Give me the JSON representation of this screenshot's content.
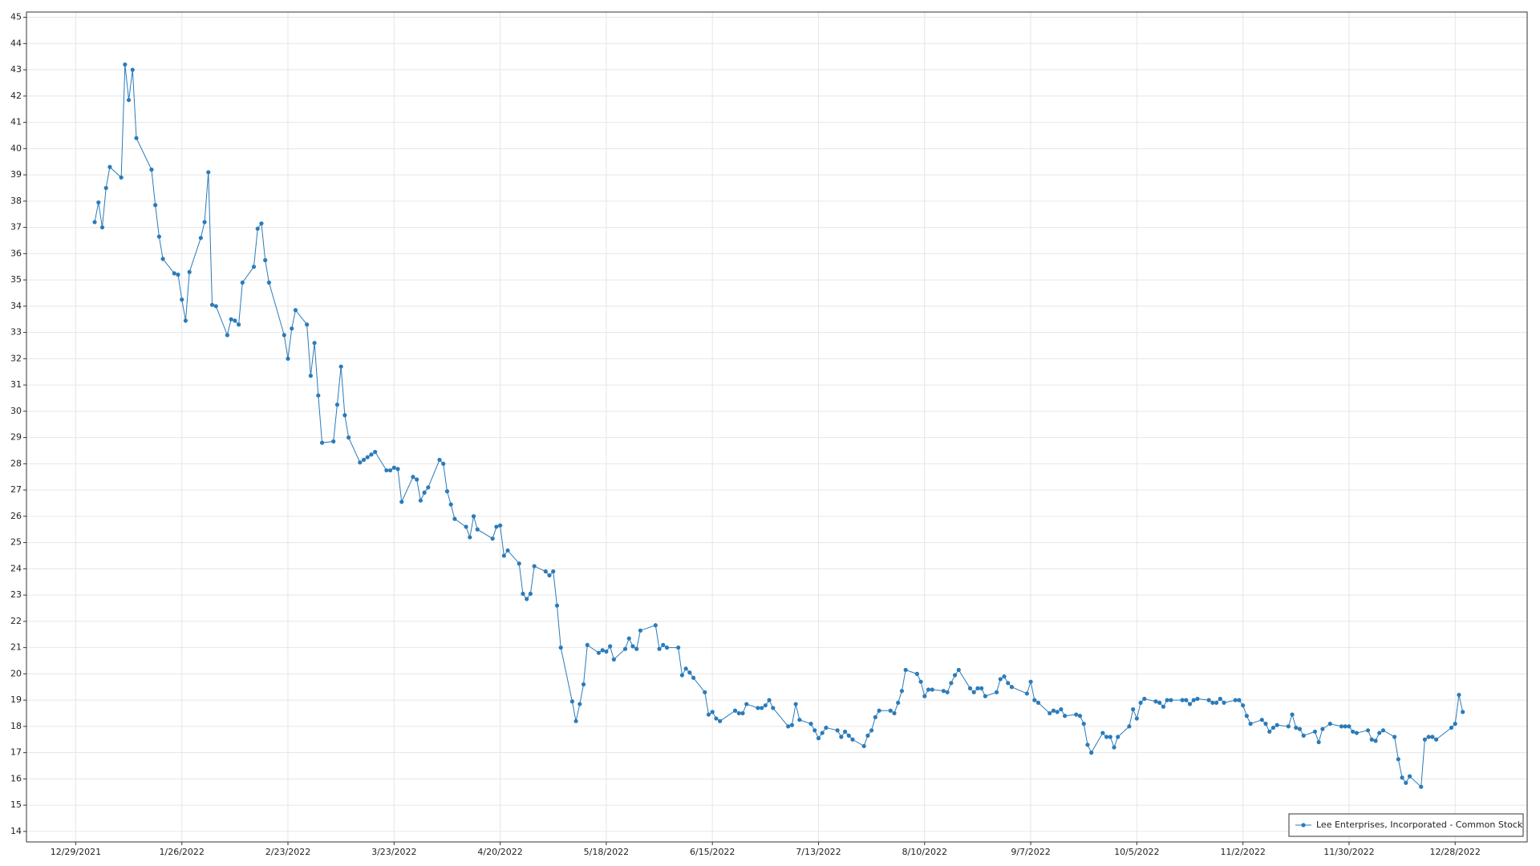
{
  "chart_data": {
    "type": "line",
    "x": [
      "1/3/2022",
      "1/4/2022",
      "1/5/2022",
      "1/6/2022",
      "1/7/2022",
      "1/10/2022",
      "1/11/2022",
      "1/12/2022",
      "1/13/2022",
      "1/14/2022",
      "1/18/2022",
      "1/19/2022",
      "1/20/2022",
      "1/21/2022",
      "1/24/2022",
      "1/25/2022",
      "1/26/2022",
      "1/27/2022",
      "1/28/2022",
      "1/31/2022",
      "2/1/2022",
      "2/2/2022",
      "2/3/2022",
      "2/4/2022",
      "2/7/2022",
      "2/8/2022",
      "2/9/2022",
      "2/10/2022",
      "2/11/2022",
      "2/14/2022",
      "2/15/2022",
      "2/16/2022",
      "2/17/2022",
      "2/18/2022",
      "2/22/2022",
      "2/23/2022",
      "2/24/2022",
      "2/25/2022",
      "2/28/2022",
      "3/1/2022",
      "3/2/2022",
      "3/3/2022",
      "3/4/2022",
      "3/7/2022",
      "3/8/2022",
      "3/9/2022",
      "3/10/2022",
      "3/11/2022",
      "3/14/2022",
      "3/15/2022",
      "3/16/2022",
      "3/17/2022",
      "3/18/2022",
      "3/21/2022",
      "3/22/2022",
      "3/23/2022",
      "3/24/2022",
      "3/25/2022",
      "3/28/2022",
      "3/29/2022",
      "3/30/2022",
      "3/31/2022",
      "4/1/2022",
      "4/4/2022",
      "4/5/2022",
      "4/6/2022",
      "4/7/2022",
      "4/8/2022",
      "4/11/2022",
      "4/12/2022",
      "4/13/2022",
      "4/14/2022",
      "4/18/2022",
      "4/19/2022",
      "4/20/2022",
      "4/21/2022",
      "4/22/2022",
      "4/25/2022",
      "4/26/2022",
      "4/27/2022",
      "4/28/2022",
      "4/29/2022",
      "5/2/2022",
      "5/3/2022",
      "5/4/2022",
      "5/5/2022",
      "5/6/2022",
      "5/9/2022",
      "5/10/2022",
      "5/11/2022",
      "5/12/2022",
      "5/13/2022",
      "5/16/2022",
      "5/17/2022",
      "5/18/2022",
      "5/19/2022",
      "5/20/2022",
      "5/23/2022",
      "5/24/2022",
      "5/25/2022",
      "5/26/2022",
      "5/27/2022",
      "5/31/2022",
      "6/1/2022",
      "6/2/2022",
      "6/3/2022",
      "6/6/2022",
      "6/7/2022",
      "6/8/2022",
      "6/9/2022",
      "6/10/2022",
      "6/13/2022",
      "6/14/2022",
      "6/15/2022",
      "6/16/2022",
      "6/17/2022",
      "6/21/2022",
      "6/22/2022",
      "6/23/2022",
      "6/24/2022",
      "6/27/2022",
      "6/28/2022",
      "6/29/2022",
      "6/30/2022",
      "7/1/2022",
      "7/5/2022",
      "7/6/2022",
      "7/7/2022",
      "7/8/2022",
      "7/11/2022",
      "7/12/2022",
      "7/13/2022",
      "7/14/2022",
      "7/15/2022",
      "7/18/2022",
      "7/19/2022",
      "7/20/2022",
      "7/21/2022",
      "7/22/2022",
      "7/25/2022",
      "7/26/2022",
      "7/27/2022",
      "7/28/2022",
      "7/29/2022",
      "8/1/2022",
      "8/2/2022",
      "8/3/2022",
      "8/4/2022",
      "8/5/2022",
      "8/8/2022",
      "8/9/2022",
      "8/10/2022",
      "8/11/2022",
      "8/12/2022",
      "8/15/2022",
      "8/16/2022",
      "8/17/2022",
      "8/18/2022",
      "8/19/2022",
      "8/22/2022",
      "8/23/2022",
      "8/24/2022",
      "8/25/2022",
      "8/26/2022",
      "8/29/2022",
      "8/30/2022",
      "8/31/2022",
      "9/1/2022",
      "9/2/2022",
      "9/6/2022",
      "9/7/2022",
      "9/8/2022",
      "9/9/2022",
      "9/12/2022",
      "9/13/2022",
      "9/14/2022",
      "9/15/2022",
      "9/16/2022",
      "9/19/2022",
      "9/20/2022",
      "9/21/2022",
      "9/22/2022",
      "9/23/2022",
      "9/26/2022",
      "9/27/2022",
      "9/28/2022",
      "9/29/2022",
      "9/30/2022",
      "10/3/2022",
      "10/4/2022",
      "10/5/2022",
      "10/6/2022",
      "10/7/2022",
      "10/10/2022",
      "10/11/2022",
      "10/12/2022",
      "10/13/2022",
      "10/14/2022",
      "10/17/2022",
      "10/18/2022",
      "10/19/2022",
      "10/20/2022",
      "10/21/2022",
      "10/24/2022",
      "10/25/2022",
      "10/26/2022",
      "10/27/2022",
      "10/28/2022",
      "10/31/2022",
      "11/1/2022",
      "11/2/2022",
      "11/3/2022",
      "11/4/2022",
      "11/7/2022",
      "11/8/2022",
      "11/9/2022",
      "11/10/2022",
      "11/11/2022",
      "11/14/2022",
      "11/15/2022",
      "11/16/2022",
      "11/17/2022",
      "11/18/2022",
      "11/21/2022",
      "11/22/2022",
      "11/23/2022",
      "11/25/2022",
      "11/28/2022",
      "11/29/2022",
      "11/30/2022",
      "12/1/2022",
      "12/2/2022",
      "12/5/2022",
      "12/6/2022",
      "12/7/2022",
      "12/8/2022",
      "12/9/2022",
      "12/12/2022",
      "12/13/2022",
      "12/14/2022",
      "12/15/2022",
      "12/16/2022",
      "12/19/2022",
      "12/20/2022",
      "12/21/2022",
      "12/22/2022",
      "12/23/2022",
      "12/27/2022",
      "12/28/2022",
      "12/29/2022",
      "12/30/2022"
    ],
    "series": [
      {
        "name": "Lee Enterprises, Incorporated - Common Stock",
        "color": "#2b7bb9",
        "values": [
          37.2,
          37.95,
          37.0,
          38.5,
          39.3,
          38.9,
          43.2,
          41.85,
          43.0,
          40.4,
          39.2,
          37.85,
          36.65,
          35.8,
          35.25,
          35.2,
          34.25,
          33.45,
          35.3,
          36.6,
          37.2,
          39.1,
          34.05,
          34.0,
          32.9,
          33.5,
          33.45,
          33.3,
          34.9,
          35.5,
          36.95,
          37.15,
          35.75,
          34.9,
          32.9,
          32.0,
          33.15,
          33.85,
          33.3,
          31.35,
          32.6,
          30.6,
          28.8,
          28.85,
          30.25,
          31.7,
          29.85,
          29.0,
          28.05,
          28.15,
          28.25,
          28.35,
          28.45,
          27.75,
          27.75,
          27.85,
          27.8,
          26.55,
          27.5,
          27.4,
          26.6,
          26.9,
          27.1,
          28.15,
          28.0,
          26.95,
          26.45,
          25.9,
          25.6,
          25.2,
          26.0,
          25.5,
          25.15,
          25.6,
          25.65,
          24.5,
          24.7,
          24.2,
          23.05,
          22.85,
          23.05,
          24.1,
          23.9,
          23.75,
          23.9,
          22.6,
          21.0,
          18.95,
          18.2,
          18.85,
          19.6,
          21.1,
          20.8,
          20.9,
          20.85,
          21.05,
          20.55,
          20.95,
          21.35,
          21.05,
          20.95,
          21.65,
          21.85,
          20.95,
          21.1,
          21.0,
          21.0,
          19.95,
          20.2,
          20.05,
          19.85,
          19.3,
          18.45,
          18.55,
          18.3,
          18.2,
          18.6,
          18.5,
          18.5,
          18.85,
          18.7,
          18.7,
          18.8,
          19.0,
          18.7,
          18.0,
          18.05,
          18.85,
          18.25,
          18.1,
          17.85,
          17.55,
          17.75,
          17.95,
          17.85,
          17.6,
          17.8,
          17.65,
          17.5,
          17.25,
          17.65,
          17.85,
          18.35,
          18.6,
          18.6,
          18.5,
          18.9,
          19.35,
          20.15,
          20.0,
          19.7,
          19.15,
          19.4,
          19.4,
          19.35,
          19.3,
          19.65,
          19.95,
          20.15,
          19.45,
          19.3,
          19.45,
          19.45,
          19.15,
          19.3,
          19.8,
          19.9,
          19.65,
          19.5,
          19.25,
          19.7,
          19.0,
          18.9,
          18.5,
          18.6,
          18.55,
          18.65,
          18.4,
          18.45,
          18.4,
          18.1,
          17.3,
          17.0,
          17.75,
          17.6,
          17.6,
          17.2,
          17.6,
          18.0,
          18.65,
          18.3,
          18.9,
          19.05,
          18.95,
          18.9,
          18.75,
          19.0,
          19.0,
          19.0,
          19.0,
          18.85,
          19.0,
          19.05,
          19.0,
          18.9,
          18.9,
          19.05,
          18.9,
          19.0,
          19.0,
          18.8,
          18.4,
          18.1,
          18.25,
          18.1,
          17.8,
          17.95,
          18.05,
          18.0,
          18.45,
          17.95,
          17.9,
          17.65,
          17.8,
          17.4,
          17.9,
          18.1,
          18.0,
          18.0,
          18.0,
          17.8,
          17.75,
          17.85,
          17.5,
          17.45,
          17.75,
          17.85,
          17.6,
          16.75,
          16.05,
          15.85,
          16.1,
          15.7,
          17.5,
          17.6,
          17.6,
          17.5,
          17.95,
          18.1,
          19.2,
          18.55
        ]
      }
    ],
    "xlim": [
      "12/16/2021",
      "1/16/2023"
    ],
    "xticks": [
      "12/29/2021",
      "1/26/2022",
      "2/23/2022",
      "3/23/2022",
      "4/20/2022",
      "5/18/2022",
      "6/15/2022",
      "7/13/2022",
      "8/10/2022",
      "9/7/2022",
      "10/5/2022",
      "11/2/2022",
      "11/30/2022",
      "12/28/2022"
    ],
    "ylim": [
      13.6,
      45.2
    ],
    "yticks": [
      14,
      15,
      16,
      17,
      18,
      19,
      20,
      21,
      22,
      23,
      24,
      25,
      26,
      27,
      28,
      29,
      30,
      31,
      32,
      33,
      34,
      35,
      36,
      37,
      38,
      39,
      40,
      41,
      42,
      43,
      44,
      45
    ],
    "grid": true,
    "legend": "lower right"
  }
}
